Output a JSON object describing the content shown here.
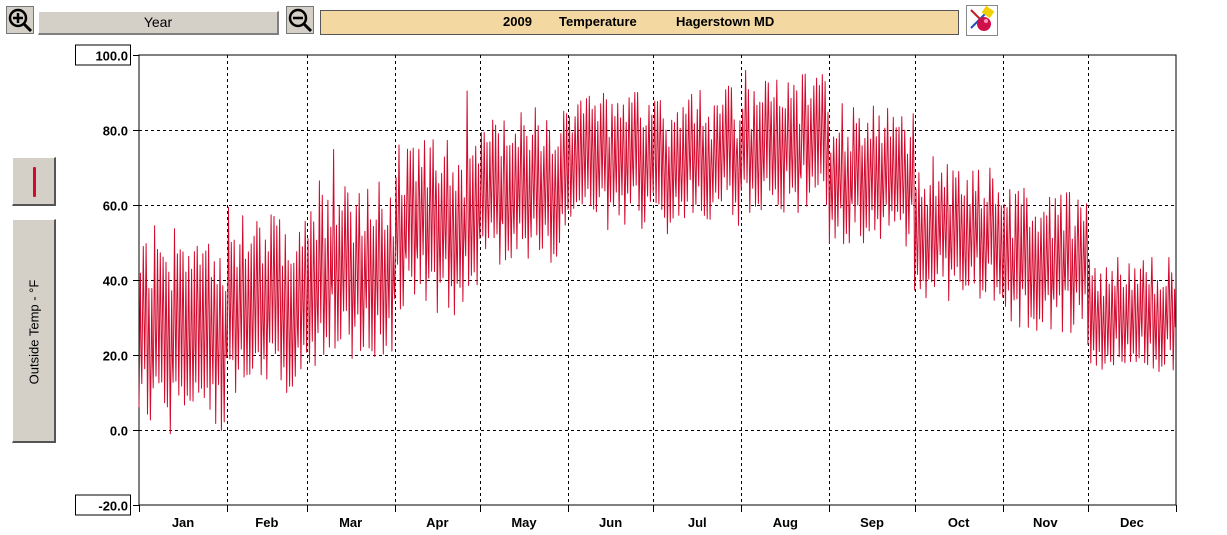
{
  "toolbar": {
    "zoom_in_icon": "zoom-in-magnifier-icon",
    "zoom_out_icon": "zoom-out-magnifier-icon",
    "period_label": "Year",
    "title_year": "2009",
    "title_variable": "Temperature",
    "title_station": "Hagerstown MD",
    "paint_icon": "paint-palette-icon"
  },
  "sidebar": {
    "series_color_label": "series-color-swatch",
    "axis_button_label": "Outside Temp - °F"
  },
  "colors": {
    "series": "#d20a2e",
    "title_bg": "#f3d9a1",
    "button_bg": "#d4d0c8",
    "grid": "#000000"
  },
  "chart_data": {
    "type": "line",
    "title": "",
    "xlabel": "",
    "ylabel": "Outside Temp - °F",
    "ylim": [
      -20,
      100
    ],
    "y_ticks": [
      "100.0",
      "80.0",
      "60.0",
      "40.0",
      "20.0",
      "0.0",
      "-20.0"
    ],
    "y_tick_values": [
      100,
      80,
      60,
      40,
      20,
      0,
      -20
    ],
    "months": [
      "Jan",
      "Feb",
      "Mar",
      "Apr",
      "May",
      "Jun",
      "Jul",
      "Aug",
      "Sep",
      "Oct",
      "Nov",
      "Dec"
    ],
    "month_days": [
      31,
      28,
      31,
      30,
      31,
      30,
      31,
      31,
      30,
      31,
      30,
      31
    ],
    "grid": true,
    "samples_per_day": 4,
    "series": [
      {
        "monthly_envelope": [
          {
            "month": "Jan",
            "low": 8,
            "high": 44,
            "min": -1,
            "max": 55
          },
          {
            "month": "Feb",
            "low": 17,
            "high": 50,
            "min": 10,
            "max": 66
          },
          {
            "month": "Mar",
            "low": 25,
            "high": 58,
            "min": 12,
            "max": 76
          },
          {
            "month": "Apr",
            "low": 38,
            "high": 70,
            "min": 28,
            "max": 92
          },
          {
            "month": "May",
            "low": 50,
            "high": 78,
            "min": 37,
            "max": 88
          },
          {
            "month": "Jun",
            "low": 60,
            "high": 85,
            "min": 53,
            "max": 90
          },
          {
            "month": "Jul",
            "low": 61,
            "high": 86,
            "min": 52,
            "max": 93
          },
          {
            "month": "Aug",
            "low": 64,
            "high": 90,
            "min": 58,
            "max": 96
          },
          {
            "month": "Sep",
            "low": 55,
            "high": 80,
            "min": 45,
            "max": 88
          },
          {
            "month": "Oct",
            "low": 40,
            "high": 65,
            "min": 30,
            "max": 80
          },
          {
            "month": "Nov",
            "low": 32,
            "high": 58,
            "min": 26,
            "max": 67
          },
          {
            "month": "Dec",
            "low": 20,
            "high": 42,
            "min": 8,
            "max": 46
          }
        ]
      }
    ]
  }
}
